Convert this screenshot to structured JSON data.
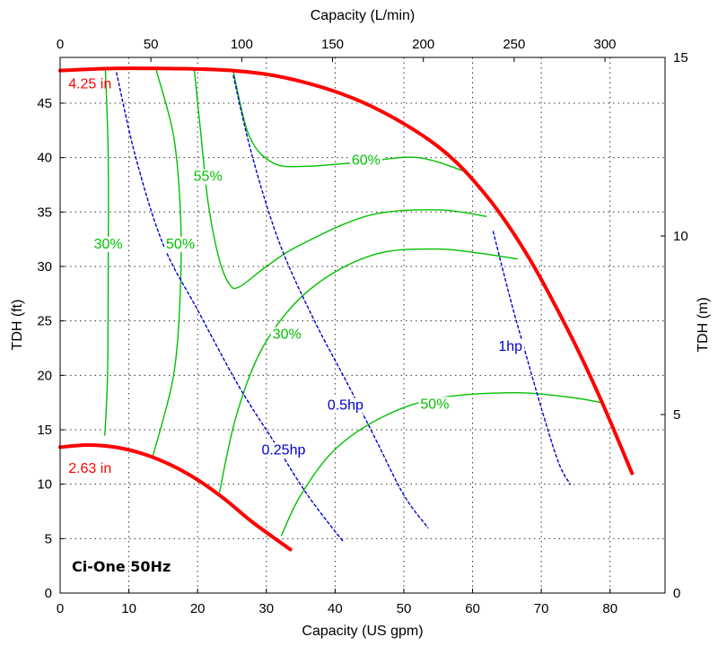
{
  "chart_data": {
    "type": "line",
    "model_label": "Ci-One 50Hz",
    "x_bottom": {
      "label": "Capacity (US gpm)",
      "range": [
        0,
        88
      ],
      "ticks": [
        0,
        10,
        20,
        30,
        40,
        50,
        60,
        70,
        80
      ]
    },
    "x_top": {
      "label": "Capacity (L/min)",
      "range": [
        0,
        333.1
      ],
      "ticks": [
        0,
        50,
        100,
        150,
        200,
        250,
        300
      ]
    },
    "y_left": {
      "label": "TDH (ft)",
      "range": [
        0,
        49.2
      ],
      "ticks": [
        0,
        5,
        10,
        15,
        20,
        25,
        30,
        35,
        40,
        45
      ]
    },
    "y_right": {
      "label": "TDH (m)",
      "range": [
        0,
        15
      ],
      "ticks": [
        0,
        5,
        10,
        15
      ]
    },
    "grid": true,
    "impeller_color": "#ff0000",
    "efficiency_color": "#00c000",
    "power_color": "#0000cc",
    "impeller_curves": [
      {
        "label": "4.25 in",
        "label_pos": [
          1.2,
          46.7
        ],
        "points": [
          [
            0,
            48
          ],
          [
            10,
            48.2
          ],
          [
            25,
            48
          ],
          [
            35,
            47
          ],
          [
            45,
            44.8
          ],
          [
            55,
            41
          ],
          [
            62,
            36.5
          ],
          [
            68,
            31
          ],
          [
            74,
            24
          ],
          [
            78.5,
            18
          ],
          [
            83.2,
            11
          ]
        ]
      },
      {
        "label": "2.63 in",
        "label_pos": [
          1.2,
          11.4
        ],
        "points": [
          [
            0,
            13.4
          ],
          [
            4,
            13.6
          ],
          [
            8,
            13.4
          ],
          [
            12,
            12.8
          ],
          [
            16,
            11.8
          ],
          [
            20,
            10.4
          ],
          [
            24,
            8.6
          ],
          [
            28,
            6.5
          ],
          [
            33.5,
            4
          ]
        ]
      }
    ],
    "efficiency_curves": [
      {
        "label": "30%",
        "label_pos": [
          7,
          32
        ],
        "points": [
          [
            6.6,
            48
          ],
          [
            7,
            40
          ],
          [
            7,
            30
          ],
          [
            6.9,
            20
          ],
          [
            6.5,
            14.5
          ]
        ]
      },
      {
        "label": "50%",
        "label_pos": [
          17.5,
          32
        ],
        "points": [
          [
            14,
            48
          ],
          [
            16.5,
            42
          ],
          [
            17.5,
            35
          ],
          [
            17.5,
            28
          ],
          [
            16.5,
            20
          ],
          [
            13.5,
            12.6
          ]
        ]
      },
      {
        "label": "55%",
        "label_pos": [
          21.5,
          38.2
        ],
        "points": [
          [
            19.5,
            48.1
          ],
          [
            20.5,
            42
          ],
          [
            21.5,
            36
          ],
          [
            23,
            31
          ],
          [
            24.5,
            28.5
          ],
          [
            26,
            28.1
          ],
          [
            30,
            30
          ],
          [
            35,
            32
          ],
          [
            45,
            34.7
          ],
          [
            55,
            35.2
          ],
          [
            62,
            34.6
          ]
        ]
      },
      {
        "label": "60%",
        "label_pos": [
          44.5,
          39.7
        ],
        "points": [
          [
            25.2,
            47.9
          ],
          [
            27.5,
            42
          ],
          [
            31,
            39.5
          ],
          [
            36,
            39.2
          ],
          [
            44,
            39.6
          ],
          [
            52,
            40
          ],
          [
            59,
            38.7
          ]
        ]
      },
      {
        "label": "30%",
        "label_pos": [
          33,
          23.7
        ],
        "points": [
          [
            23.2,
            9.3
          ],
          [
            25.5,
            16
          ],
          [
            29,
            22
          ],
          [
            34,
            26.5
          ],
          [
            40,
            29.5
          ],
          [
            47,
            31.3
          ],
          [
            55,
            31.6
          ],
          [
            60,
            31.3
          ],
          [
            66.5,
            30.7
          ]
        ]
      },
      {
        "label": "50%",
        "label_pos": [
          54.5,
          17.3
        ],
        "points": [
          [
            32.2,
            5.3
          ],
          [
            35,
            9
          ],
          [
            40,
            13.2
          ],
          [
            47,
            16.2
          ],
          [
            55,
            17.9
          ],
          [
            66,
            18.4
          ],
          [
            74,
            18
          ],
          [
            78.7,
            17.5
          ]
        ]
      }
    ],
    "power_curves": [
      {
        "label": "0.25hp",
        "label_pos": [
          32.5,
          13.1
        ],
        "points": [
          [
            8.2,
            47.8
          ],
          [
            11,
            40
          ],
          [
            15,
            32
          ],
          [
            20,
            26
          ],
          [
            26,
            19
          ],
          [
            31,
            14
          ],
          [
            36,
            9
          ],
          [
            41.2,
            4.7
          ]
        ]
      },
      {
        "label": "0.5hp",
        "label_pos": [
          41.5,
          17.2
        ],
        "points": [
          [
            25.2,
            47.5
          ],
          [
            28,
            40
          ],
          [
            32,
            32
          ],
          [
            37,
            25
          ],
          [
            42,
            19
          ],
          [
            46,
            14
          ],
          [
            50,
            9
          ],
          [
            53.5,
            6
          ]
        ]
      },
      {
        "label": "1hp",
        "label_pos": [
          65.5,
          22.6
        ],
        "points": [
          [
            63,
            33.2
          ],
          [
            65.5,
            27
          ],
          [
            67.5,
            22.5
          ],
          [
            70,
            17
          ],
          [
            72.5,
            12
          ],
          [
            74.2,
            10
          ]
        ]
      }
    ]
  }
}
